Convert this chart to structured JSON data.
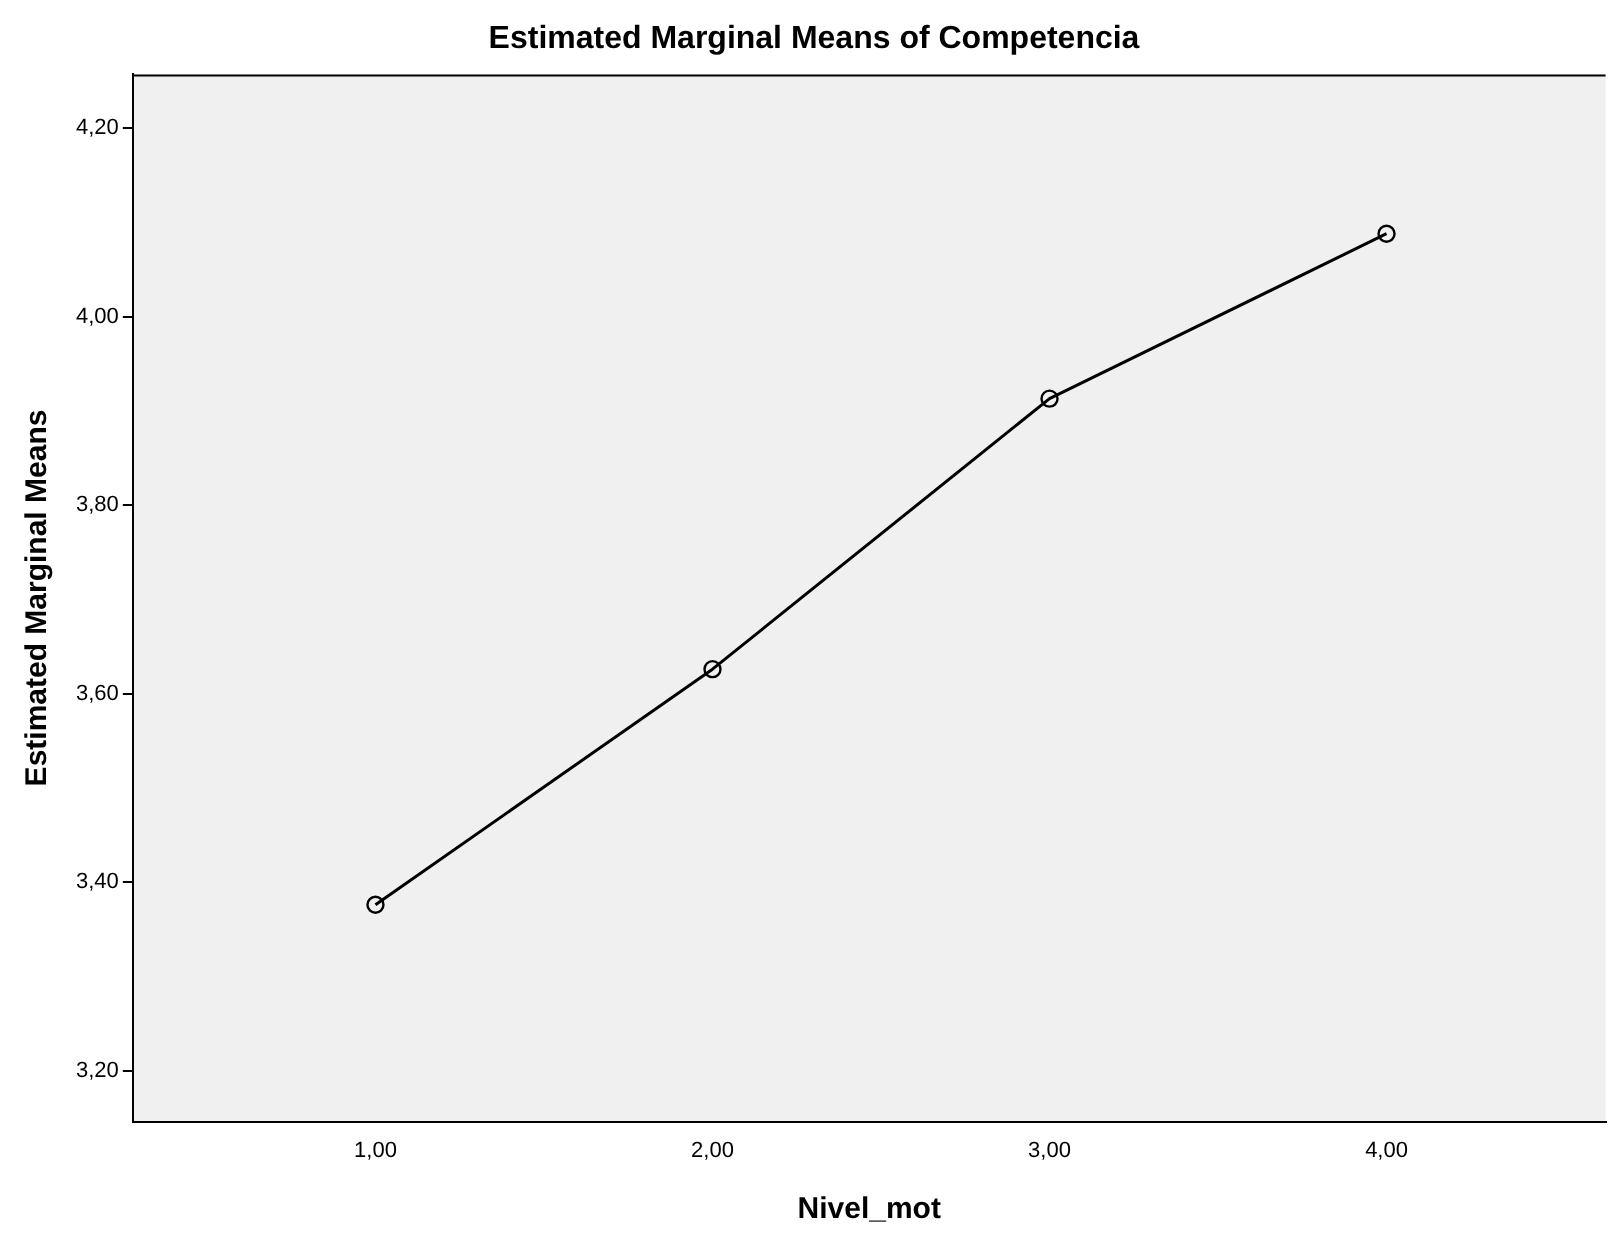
{
  "chart_data": {
    "type": "line",
    "title": "Estimated Marginal Means of Competencia",
    "xlabel": "Nivel_mot",
    "ylabel": "Estimated Marginal Means",
    "x": [
      1,
      2,
      3,
      4
    ],
    "series": [
      {
        "color": "#000000",
        "values": [
          3.376,
          3.626,
          3.913,
          4.088
        ]
      }
    ],
    "xlim": [
      0.28,
      4.65
    ],
    "xticks": [
      {
        "value": 1,
        "label": "1,00"
      },
      {
        "value": 2,
        "label": "2,00"
      },
      {
        "value": 3,
        "label": "3,00"
      },
      {
        "value": 4,
        "label": "4,00"
      }
    ],
    "ylim": [
      3.146,
      4.257
    ],
    "yticks": [
      {
        "value": 3.2,
        "label": "3,20"
      },
      {
        "value": 3.4,
        "label": "3,40"
      },
      {
        "value": 3.6,
        "label": "3,60"
      },
      {
        "value": 3.8,
        "label": "3,80"
      },
      {
        "value": 4.0,
        "label": "4,00"
      },
      {
        "value": 4.2,
        "label": "4,20"
      }
    ],
    "grid": false,
    "legend": false,
    "marker": "circle",
    "line_style": "solid"
  }
}
